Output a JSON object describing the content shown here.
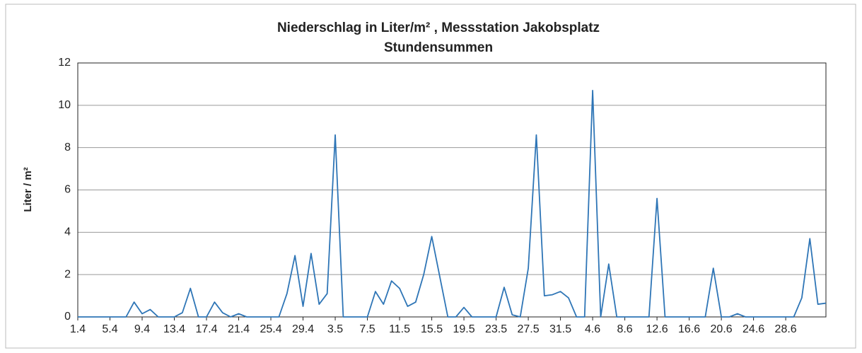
{
  "chart_data": {
    "type": "line",
    "title": "Niederschlag in Liter/m² , Messstation Jakobsplatz",
    "subtitle": "Stundensummen",
    "y_label": "Liter / m²",
    "categories": [
      "1.4",
      null,
      null,
      null,
      "5.4",
      null,
      null,
      null,
      "9.4",
      null,
      null,
      null,
      "13.4",
      null,
      null,
      null,
      "17.4",
      null,
      null,
      null,
      "21.4",
      null,
      null,
      null,
      "25.4",
      null,
      null,
      null,
      "29.4",
      null,
      null,
      null,
      "3.5",
      null,
      null,
      null,
      "7.5",
      null,
      null,
      null,
      "11.5",
      null,
      null,
      null,
      "15.5",
      null,
      null,
      null,
      "19.5",
      null,
      null,
      null,
      "23.5",
      null,
      null,
      null,
      "27.5",
      null,
      null,
      null,
      "31.5",
      null,
      null,
      null,
      "4.6",
      null,
      null,
      null,
      "8.6",
      null,
      null,
      null,
      "12.6",
      null,
      null,
      null,
      "16.6",
      null,
      null,
      null,
      "20.6",
      null,
      null,
      null,
      "24.6",
      null,
      null,
      null,
      "28.6",
      null,
      null,
      null,
      null,
      null
    ],
    "values": [
      0,
      0,
      0,
      0,
      0,
      0,
      0,
      0.7,
      0.15,
      0.35,
      0,
      0,
      0,
      0.2,
      1.35,
      0,
      0,
      0.7,
      0.2,
      0,
      0.15,
      0,
      0,
      0,
      0,
      0,
      1.1,
      2.9,
      0.5,
      3.0,
      0.6,
      1.1,
      8.6,
      0,
      0,
      0,
      0,
      1.2,
      0.6,
      1.7,
      1.35,
      0.5,
      0.7,
      2.0,
      3.8,
      1.9,
      0,
      0,
      0.45,
      0,
      0,
      0,
      0,
      1.4,
      0.1,
      0,
      2.3,
      8.6,
      1.0,
      1.05,
      1.2,
      0.9,
      0,
      0,
      10.7,
      0,
      2.5,
      0,
      0,
      0,
      0,
      0,
      5.6,
      0,
      0,
      0,
      0,
      0,
      0,
      2.3,
      0,
      0,
      0.15,
      0,
      0,
      0,
      0,
      0,
      0,
      0,
      0.9,
      3.7,
      0.6,
      0.65
    ],
    "color": "#2e75b6",
    "ylim": [
      0,
      12
    ],
    "yticks": [
      0,
      2,
      4,
      6,
      8,
      10,
      12
    ],
    "grid": true
  }
}
